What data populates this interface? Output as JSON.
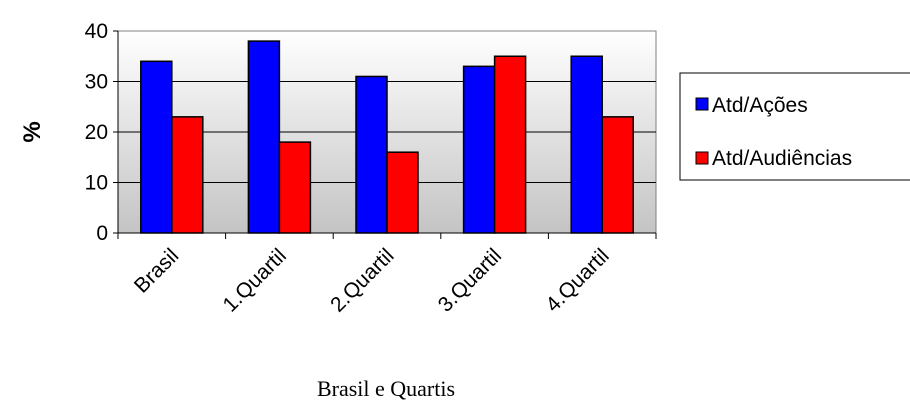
{
  "chart_data": {
    "type": "bar",
    "categories": [
      "Brasil",
      "1.Quartil",
      "2.Quartil",
      "3.Quartil",
      "4.Quartil"
    ],
    "series": [
      {
        "name": "Atd/Ações",
        "values": [
          34,
          38,
          31,
          33,
          35
        ],
        "color": "#0000ff"
      },
      {
        "name": "Atd/Audiências",
        "values": [
          23,
          18,
          16,
          35,
          23
        ],
        "color": "#ff0000"
      }
    ],
    "xlabel": "Brasil e Quartis",
    "ylabel": "%",
    "ylim": [
      0,
      40
    ],
    "yticks": [
      0,
      10,
      20,
      30,
      40
    ],
    "grid": true,
    "legend_position": "right",
    "background": "gradient gray to white"
  }
}
